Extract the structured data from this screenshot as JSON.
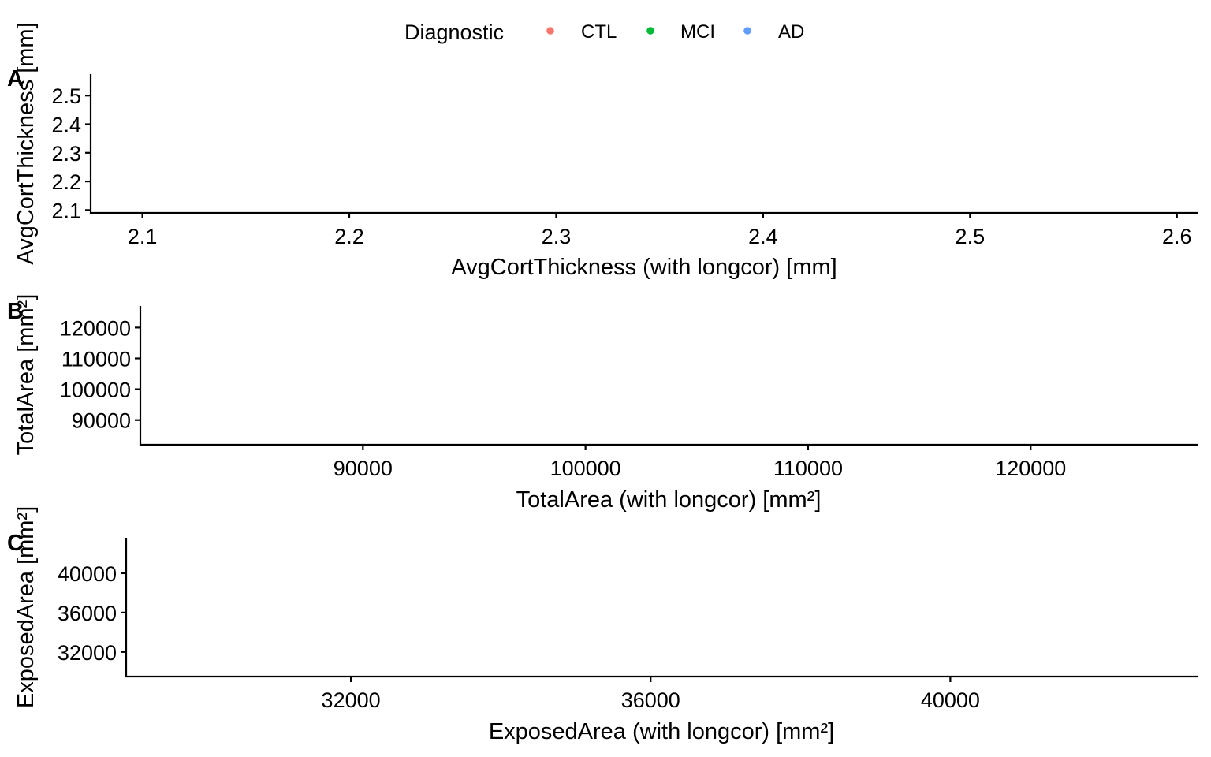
{
  "legend": {
    "title": "Diagnostic",
    "items": [
      {
        "label": "CTL",
        "color": "#F8766D"
      },
      {
        "label": "MCI",
        "color": "#00BA38"
      },
      {
        "label": "AD",
        "color": "#619CFF"
      }
    ]
  },
  "chart_data": [
    {
      "tag": "A",
      "type": "scatter",
      "xlabel": "AvgCortThickness (with longcor) [mm]",
      "ylabel": "AvgCortThickness [mm]",
      "xlim": [
        2.075,
        2.61
      ],
      "ylim": [
        2.09,
        2.575
      ],
      "xticks": [
        {
          "value": 2.1,
          "label": "2.1"
        },
        {
          "value": 2.2,
          "label": "2.2"
        },
        {
          "value": 2.3,
          "label": "2.3"
        },
        {
          "value": 2.4,
          "label": "2.4"
        },
        {
          "value": 2.5,
          "label": "2.5"
        },
        {
          "value": 2.6,
          "label": "2.6"
        }
      ],
      "yticks": [
        {
          "value": 2.1,
          "label": "2.1"
        },
        {
          "value": 2.2,
          "label": "2.2"
        },
        {
          "value": 2.3,
          "label": "2.3"
        },
        {
          "value": 2.4,
          "label": "2.4"
        },
        {
          "value": 2.5,
          "label": "2.5"
        }
      ],
      "series": []
    },
    {
      "tag": "B",
      "type": "scatter",
      "xlabel": "TotalArea (with longcor) [mm²]",
      "ylabel": "TotalArea [mm²]",
      "xlim": [
        80000,
        127500
      ],
      "ylim": [
        82000,
        127000
      ],
      "xticks": [
        {
          "value": 90000,
          "label": "90000"
        },
        {
          "value": 100000,
          "label": "100000"
        },
        {
          "value": 110000,
          "label": "110000"
        },
        {
          "value": 120000,
          "label": "120000"
        }
      ],
      "yticks": [
        {
          "value": 90000,
          "label": "90000"
        },
        {
          "value": 100000,
          "label": "100000"
        },
        {
          "value": 110000,
          "label": "110000"
        },
        {
          "value": 120000,
          "label": "120000"
        }
      ],
      "series": []
    },
    {
      "tag": "C",
      "type": "scatter",
      "xlabel": "ExposedArea (with longcor) [mm²]",
      "ylabel": "ExposedArea [mm²]",
      "xlim": [
        29000,
        43300
      ],
      "ylim": [
        29500,
        43600
      ],
      "xticks": [
        {
          "value": 32000,
          "label": "32000"
        },
        {
          "value": 36000,
          "label": "36000"
        },
        {
          "value": 40000,
          "label": "40000"
        }
      ],
      "yticks": [
        {
          "value": 32000,
          "label": "32000"
        },
        {
          "value": 36000,
          "label": "36000"
        },
        {
          "value": 40000,
          "label": "40000"
        }
      ],
      "series": []
    }
  ]
}
